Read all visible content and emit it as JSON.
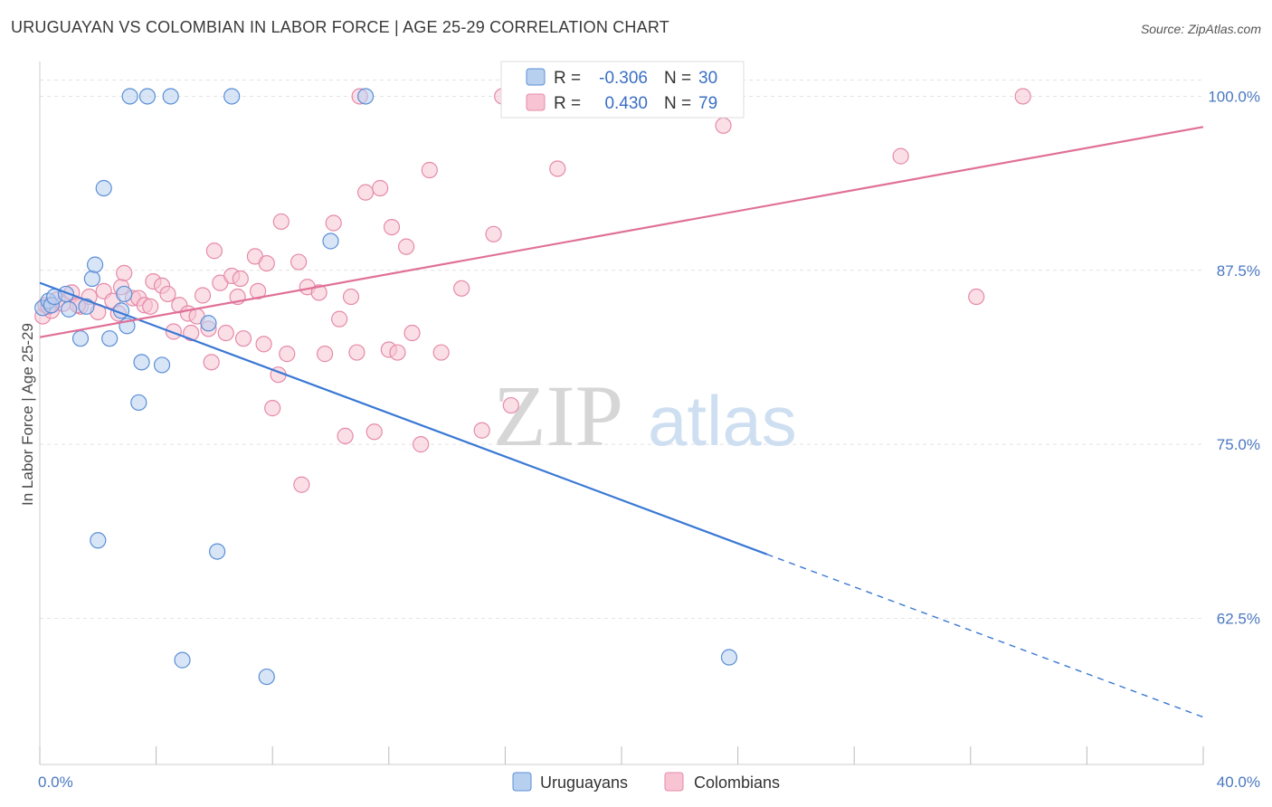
{
  "header": {
    "title": "URUGUAYAN VS COLOMBIAN IN LABOR FORCE | AGE 25-29 CORRELATION CHART",
    "source": "Source: ZipAtlas.com"
  },
  "watermark": {
    "zip": "ZIP",
    "atlas": "atlas"
  },
  "colors": {
    "uruguayans_fill": "#b8d0f0",
    "uruguayans_stroke": "#5b8fd6",
    "uruguayans_line": "#3a78d4",
    "colombians_fill": "#f8c4d4",
    "colombians_stroke": "#e58aa8",
    "colombians_line": "#e07098",
    "tick_label": "#4a78c0",
    "grid": "#e4e4e4"
  },
  "chart_data": {
    "type": "scatter",
    "title": "URUGUAYAN VS COLOMBIAN IN LABOR FORCE | AGE 25-29 CORRELATION CHART",
    "xlabel": "",
    "ylabel": "In Labor Force | Age 25-29",
    "xlim": [
      0,
      40
    ],
    "ylim": [
      52,
      102.5
    ],
    "x_tick_labels": [
      "0.0%",
      "40.0%"
    ],
    "y_ticks": [
      62.5,
      75.0,
      87.5,
      100.0
    ],
    "y_tick_labels": [
      "62.5%",
      "75.0%",
      "87.5%",
      "100.0%"
    ],
    "grid": true,
    "legend_position": "top-center",
    "stats": [
      {
        "r_label": "R =",
        "r_value": "-0.306",
        "n_label": "N =",
        "n_value": "30"
      },
      {
        "r_label": "R =",
        "r_value": "0.430",
        "n_label": "N =",
        "n_value": "79"
      }
    ],
    "series": [
      {
        "name": "Uruguayans",
        "trend": {
          "x0": 0.0,
          "y0": 86.6,
          "x1": 25.0,
          "y1": 67.1,
          "dash_x1": 40.0,
          "dash_y1": 55.4
        },
        "points": [
          [
            0.1,
            84.8
          ],
          [
            0.3,
            85.3
          ],
          [
            0.4,
            85.0
          ],
          [
            0.5,
            85.6
          ],
          [
            0.9,
            85.8
          ],
          [
            1.0,
            84.7
          ],
          [
            1.4,
            82.6
          ],
          [
            1.6,
            84.9
          ],
          [
            1.8,
            86.9
          ],
          [
            1.9,
            87.9
          ],
          [
            2.0,
            68.1
          ],
          [
            2.2,
            93.4
          ],
          [
            2.4,
            82.6
          ],
          [
            2.8,
            84.6
          ],
          [
            2.9,
            85.8
          ],
          [
            3.0,
            83.5
          ],
          [
            3.1,
            100.0
          ],
          [
            3.4,
            78.0
          ],
          [
            3.5,
            80.9
          ],
          [
            3.7,
            100.0
          ],
          [
            4.2,
            80.7
          ],
          [
            4.5,
            100.0
          ],
          [
            4.9,
            59.5
          ],
          [
            5.8,
            83.7
          ],
          [
            6.1,
            67.3
          ],
          [
            6.6,
            100.0
          ],
          [
            7.8,
            58.3
          ],
          [
            10.0,
            89.6
          ],
          [
            11.2,
            100.0
          ],
          [
            23.7,
            59.7
          ]
        ]
      },
      {
        "name": "Colombians",
        "trend": {
          "x0": 0.0,
          "y0": 82.7,
          "x1": 40.0,
          "y1": 97.8
        },
        "points": [
          [
            0.1,
            84.2
          ],
          [
            0.2,
            85.0
          ],
          [
            0.4,
            84.6
          ],
          [
            0.6,
            85.4
          ],
          [
            0.8,
            85.1
          ],
          [
            1.1,
            85.9
          ],
          [
            1.4,
            84.9
          ],
          [
            1.7,
            85.6
          ],
          [
            2.0,
            84.5
          ],
          [
            2.2,
            86.0
          ],
          [
            2.5,
            85.3
          ],
          [
            2.8,
            86.3
          ],
          [
            2.9,
            87.3
          ],
          [
            3.2,
            85.5
          ],
          [
            3.4,
            85.5
          ],
          [
            3.6,
            85.0
          ],
          [
            3.8,
            84.9
          ],
          [
            3.9,
            86.7
          ],
          [
            4.2,
            86.4
          ],
          [
            4.4,
            85.8
          ],
          [
            4.6,
            83.1
          ],
          [
            4.8,
            85.0
          ],
          [
            5.1,
            84.4
          ],
          [
            5.2,
            83.0
          ],
          [
            5.4,
            84.2
          ],
          [
            5.6,
            85.7
          ],
          [
            5.8,
            83.3
          ],
          [
            5.9,
            80.9
          ],
          [
            6.0,
            88.9
          ],
          [
            6.2,
            86.6
          ],
          [
            6.4,
            83.0
          ],
          [
            6.6,
            87.1
          ],
          [
            6.8,
            85.6
          ],
          [
            7.0,
            82.6
          ],
          [
            7.4,
            88.5
          ],
          [
            7.5,
            86.0
          ],
          [
            7.7,
            82.2
          ],
          [
            7.8,
            88.0
          ],
          [
            8.0,
            77.6
          ],
          [
            8.2,
            80.0
          ],
          [
            8.3,
            91.0
          ],
          [
            8.5,
            81.5
          ],
          [
            8.9,
            88.1
          ],
          [
            9.0,
            72.1
          ],
          [
            9.2,
            86.3
          ],
          [
            9.6,
            85.9
          ],
          [
            9.8,
            81.5
          ],
          [
            10.1,
            90.9
          ],
          [
            10.3,
            84.0
          ],
          [
            10.5,
            75.6
          ],
          [
            10.7,
            85.6
          ],
          [
            10.9,
            81.6
          ],
          [
            11.0,
            100.0
          ],
          [
            11.2,
            93.1
          ],
          [
            11.5,
            75.9
          ],
          [
            11.7,
            93.4
          ],
          [
            12.0,
            81.8
          ],
          [
            12.1,
            90.6
          ],
          [
            12.3,
            81.6
          ],
          [
            12.6,
            89.2
          ],
          [
            12.8,
            83.0
          ],
          [
            13.1,
            75.0
          ],
          [
            13.4,
            94.7
          ],
          [
            13.8,
            81.6
          ],
          [
            14.5,
            86.2
          ],
          [
            15.2,
            76.0
          ],
          [
            15.6,
            90.1
          ],
          [
            15.9,
            100.0
          ],
          [
            16.2,
            77.8
          ],
          [
            17.8,
            94.8
          ],
          [
            21.7,
            100.0
          ],
          [
            23.5,
            97.9
          ],
          [
            29.6,
            95.7
          ],
          [
            32.2,
            85.6
          ],
          [
            33.8,
            100.0
          ],
          [
            0.3,
            84.9
          ],
          [
            1.3,
            85.0
          ],
          [
            2.7,
            84.4
          ],
          [
            6.9,
            86.9
          ]
        ]
      }
    ]
  },
  "legend": {
    "uruguayans": "Uruguayans",
    "colombians": "Colombians"
  }
}
